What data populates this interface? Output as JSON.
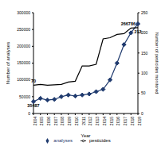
{
  "chart_data": {
    "type": "line",
    "x_label": "Year",
    "y_label": "Number of analyses",
    "y2_label": "Number of pesticides monitored",
    "categories": [
      "2004",
      "2005",
      "2006",
      "2007",
      "2008",
      "2009",
      "2010",
      "2011",
      "2012",
      "2013",
      "2014",
      "2015",
      "2016",
      "2017",
      "2018",
      "2019"
    ],
    "series": [
      {
        "name": "analyses",
        "color": "#1f3a6e",
        "marker": "diamond",
        "values": [
          35487,
          45000,
          40000,
          42000,
          50000,
          55000,
          52000,
          55000,
          58000,
          65000,
          72000,
          100000,
          150000,
          205000,
          240000,
          266786
        ]
      },
      {
        "name": "pesticides",
        "color": "#000000",
        "marker": "none",
        "axis": "y2",
        "values": [
          70,
          72,
          70,
          71,
          72,
          78,
          80,
          118,
          118,
          122,
          185,
          188,
          196,
          198,
          212,
          213
        ]
      }
    ],
    "ylim": [
      0,
      300000
    ],
    "yticks": [
      0,
      50000,
      100000,
      150000,
      200000,
      250000,
      300000
    ],
    "y2lim": [
      0,
      250
    ],
    "y2ticks": [
      0,
      50,
      100,
      150,
      200,
      250
    ],
    "legend": "bottom",
    "grid": false,
    "annotations": [
      {
        "text": "35487",
        "x": "2004",
        "series": "analyses"
      },
      {
        "text": "70",
        "x": "2004",
        "series": "pesticides"
      },
      {
        "text": "266786",
        "x": "2019",
        "series": "analyses"
      },
      {
        "text": "213",
        "x": "2019",
        "series": "pesticides"
      }
    ]
  }
}
